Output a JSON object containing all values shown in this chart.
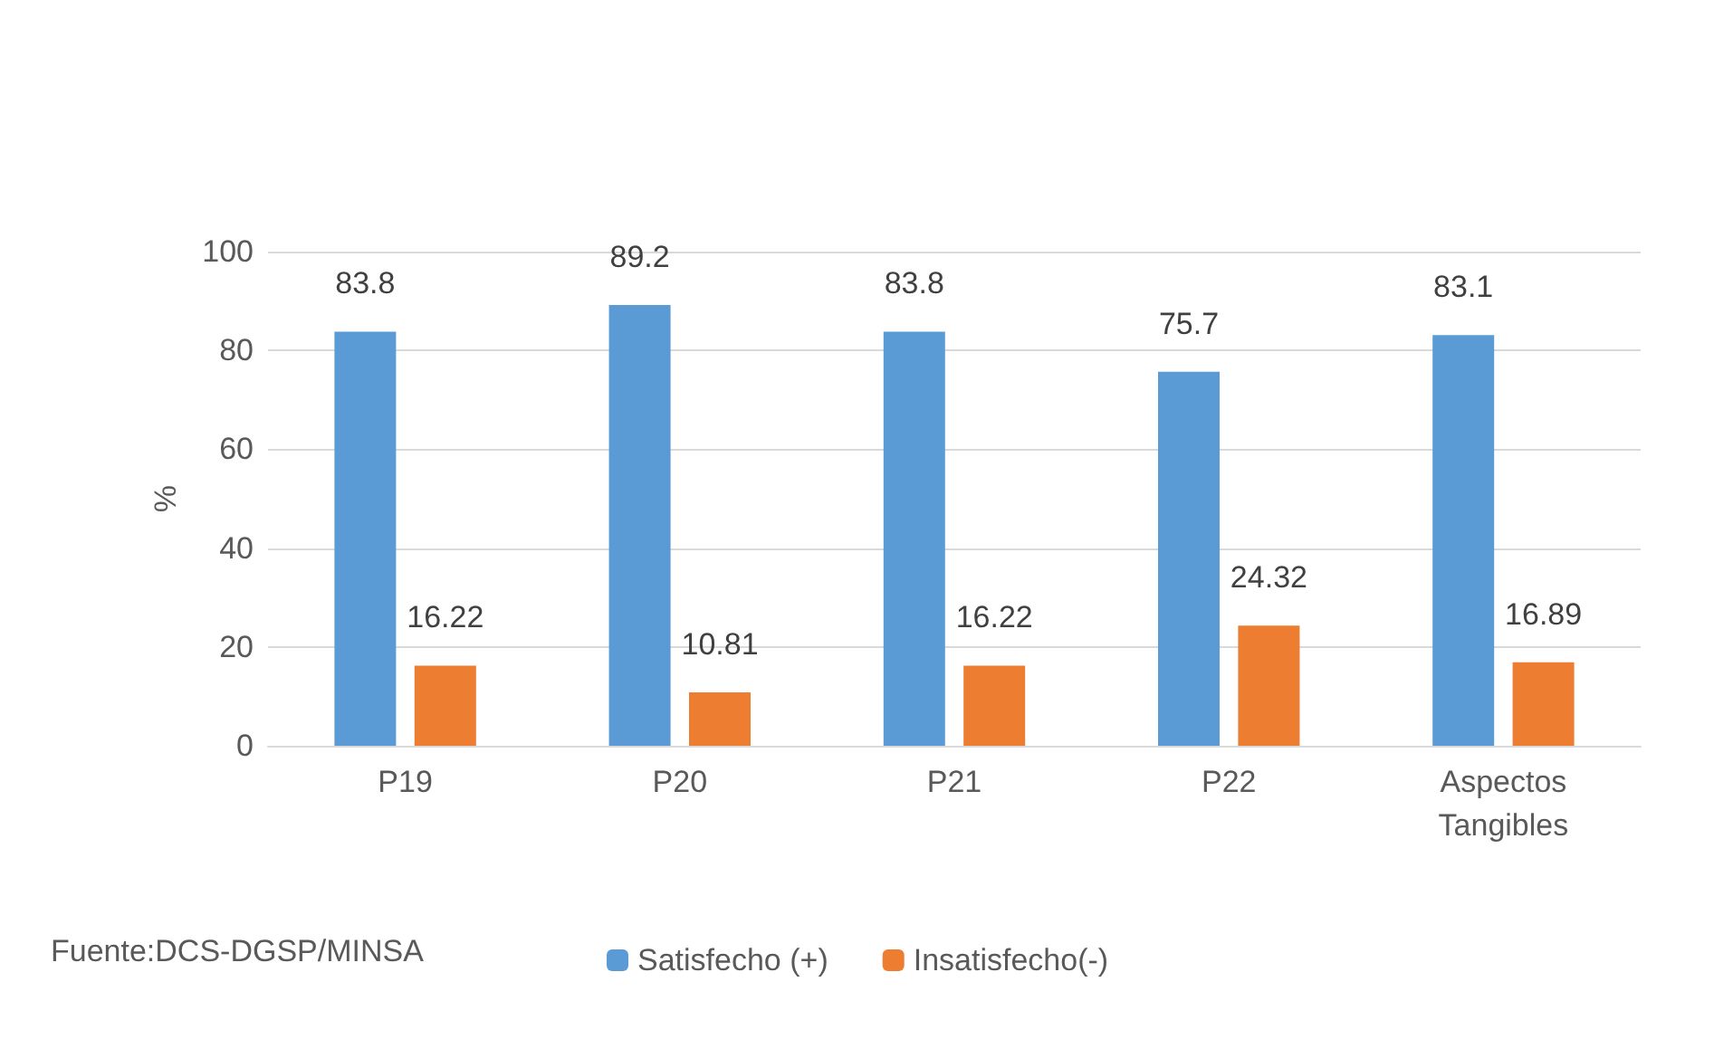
{
  "chart_data": {
    "type": "bar",
    "ylabel": "%",
    "categories": [
      "P19",
      "P20",
      "P21",
      "P22",
      "Aspectos\nTangibles"
    ],
    "series": [
      {
        "name": "Satisfecho (+)",
        "color": "#5b9bd5",
        "values": [
          83.8,
          89.2,
          83.8,
          75.7,
          83.1
        ]
      },
      {
        "name": "Insatisfecho(-)",
        "color": "#ed7d31",
        "values": [
          16.22,
          10.81,
          16.22,
          24.32,
          16.89
        ]
      }
    ],
    "ylim": [
      0,
      100
    ],
    "yticks": [
      0,
      20,
      40,
      60,
      80,
      100
    ],
    "grid": "y",
    "legend": "bottom",
    "data_labels": true,
    "annotations": [
      "Fuente:DCS-DGSP/MINSA"
    ]
  }
}
